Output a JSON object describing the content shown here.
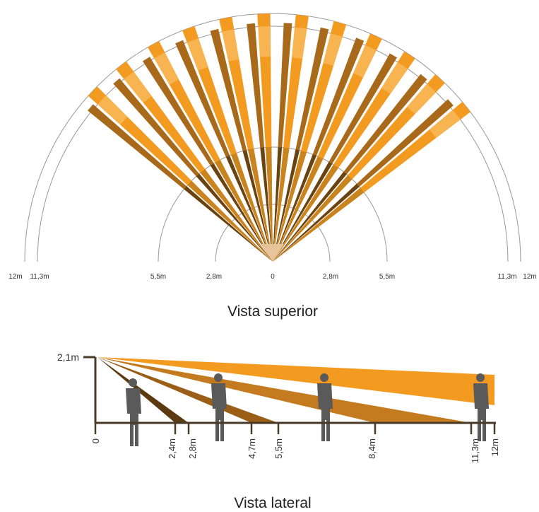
{
  "top_view": {
    "axis_labels": [
      "12m",
      "11,3m",
      "5,5m",
      "2,8m",
      "0",
      "2,8m",
      "5,5m",
      "11,3m",
      "12m"
    ],
    "caption": "Vista superior"
  },
  "side_view": {
    "height_label": "2,1m",
    "axis_labels": [
      "0",
      "2,4m",
      "2,8m",
      "4,7m",
      "5,5m",
      "8,4m",
      "11,3m",
      "12m"
    ],
    "caption": "Vista lateral"
  }
}
